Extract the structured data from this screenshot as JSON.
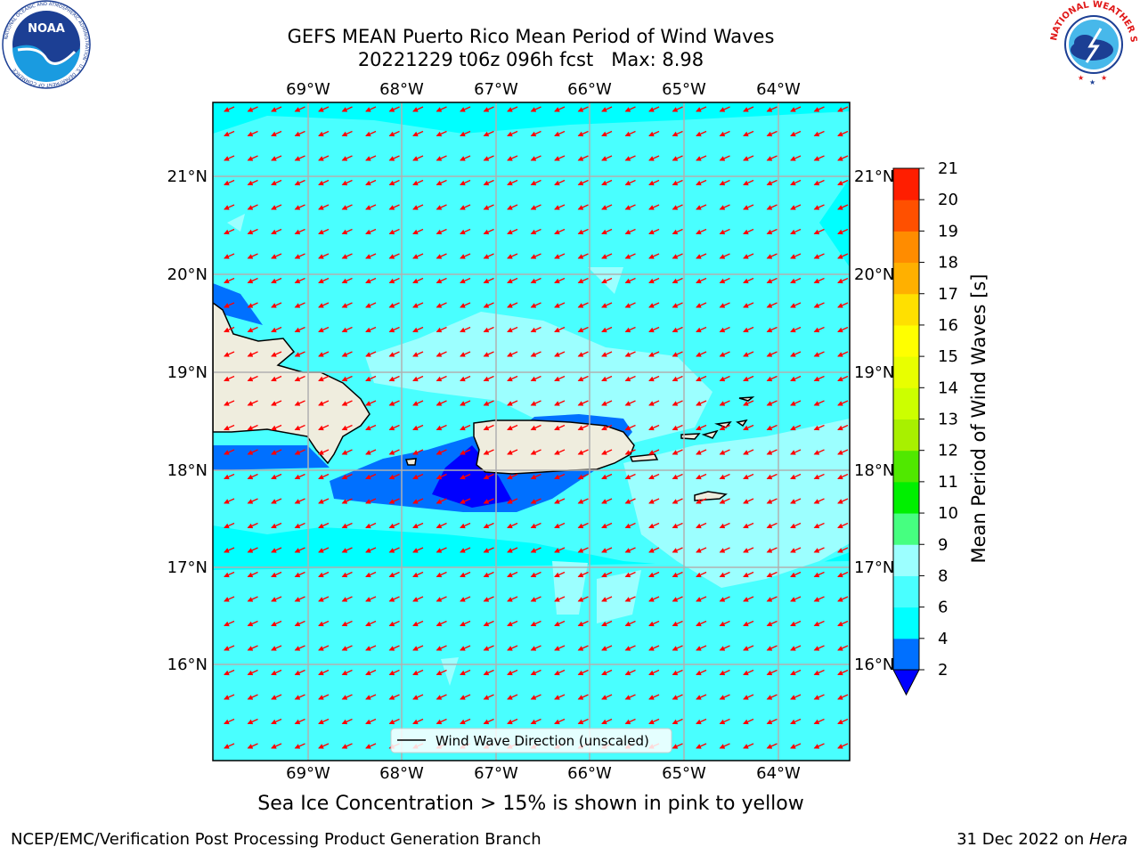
{
  "header": {
    "title_line1": "GEFS MEAN Puerto Rico Mean Period of Wind Waves",
    "title_line2": "20221229 t06z 096h fcst   Max: 8.98"
  },
  "logos": {
    "left": "NOAA",
    "left_ring": "NATIONAL OCEANIC AND ATMOSPHERIC ADMINISTRATION · U.S. DEPARTMENT OF COMMERCE",
    "right_ring": "NATIONAL WEATHER SERVICE"
  },
  "map": {
    "lon_labels": [
      "69°W",
      "68°W",
      "67°W",
      "66°W",
      "65°W",
      "64°W"
    ],
    "lat_labels": [
      "21°N",
      "20°N",
      "19°N",
      "18°N",
      "17°N",
      "16°N"
    ],
    "legend_label": "Wind Wave Direction (unscaled)",
    "colors": {
      "ocean_default": "#00ffff",
      "ocean_6_8": "#49ffff",
      "ocean_8_9": "#9cffff",
      "ocean_2_4": "#0070ff",
      "ocean_below_2": "#0000ff",
      "land": "#efedde",
      "arrow": "#ff0000",
      "grid": "#b0b0b0"
    }
  },
  "colorbar": {
    "label": "Mean Period of Wind Waves [s]",
    "ticks": [
      "2",
      "4",
      "6",
      "8",
      "9",
      "10",
      "11",
      "12",
      "13",
      "14",
      "15",
      "16",
      "17",
      "18",
      "19",
      "20",
      "21"
    ],
    "colors": [
      "#0070ff",
      "#00ffff",
      "#49ffff",
      "#9cffff",
      "#46ff80",
      "#00f000",
      "#50e800",
      "#a8f000",
      "#ccff00",
      "#e8ff00",
      "#ffff00",
      "#ffe000",
      "#ffb000",
      "#ff8c00",
      "#ff5000",
      "#ff1e00"
    ],
    "under_color": "#0000ff"
  },
  "footer": {
    "sea_ice_note": "Sea Ice Concentration > 15% is shown in pink to yellow",
    "branch": "NCEP/EMC/Verification Post Processing Product Generation Branch",
    "date_prefix": "31 Dec 2022 on ",
    "host": "Hera"
  }
}
